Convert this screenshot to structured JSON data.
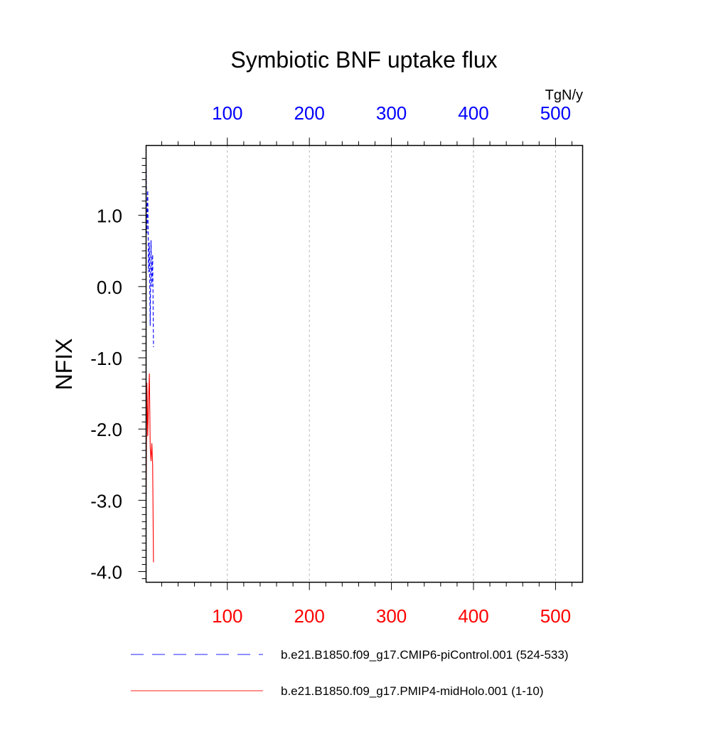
{
  "chart_data": {
    "type": "line",
    "title": "Symbiotic BNF uptake flux",
    "ylabel": "NFIX",
    "units_label": "TgN/y",
    "ylim": [
      -4.15,
      1.98
    ],
    "y_ticks": [
      "1.0",
      "0.0",
      "-1.0",
      "-2.0",
      "-3.0",
      "-4.0"
    ],
    "y_tick_values": [
      1.0,
      0.0,
      -1.0,
      -2.0,
      -3.0,
      -4.0
    ],
    "top_axis": {
      "xlim": [
        1,
        533
      ],
      "tick_values": [
        100,
        200,
        300,
        400,
        500
      ],
      "tick_labels": [
        "100",
        "200",
        "300",
        "400",
        "500"
      ],
      "color": "#0000ff"
    },
    "bottom_axis": {
      "xlim": [
        1,
        533
      ],
      "tick_values": [
        100,
        200,
        300,
        400,
        500
      ],
      "tick_labels": [
        "100",
        "200",
        "300",
        "400",
        "500"
      ],
      "color": "#ff0000"
    },
    "grid": "vertical dashed at major x ticks",
    "legend_position": "bottom",
    "series": [
      {
        "name": "b.e21.B1850.f09_g17.CMIP6-piControl.001 (524-533)",
        "axis": "top",
        "color": "#0000ff",
        "dash": true,
        "x": [
          1,
          2,
          3,
          4,
          5,
          6,
          7,
          8,
          9,
          10
        ],
        "values": [
          1.73,
          0.75,
          1.35,
          0.2,
          0.62,
          -0.55,
          0.65,
          0.0,
          0.45,
          -0.85
        ]
      },
      {
        "name": "b.e21.B1850.f09_g17.PMIP4-midHolo.001 (1-10)",
        "axis": "bottom",
        "color": "#ff0000",
        "dash": false,
        "x": [
          1,
          2,
          3,
          4,
          5,
          6,
          7,
          8,
          9,
          10
        ],
        "values": [
          -2.95,
          -1.35,
          -2.1,
          -1.6,
          -1.22,
          -2.25,
          -2.45,
          -2.2,
          -2.5,
          -3.87
        ]
      }
    ]
  }
}
